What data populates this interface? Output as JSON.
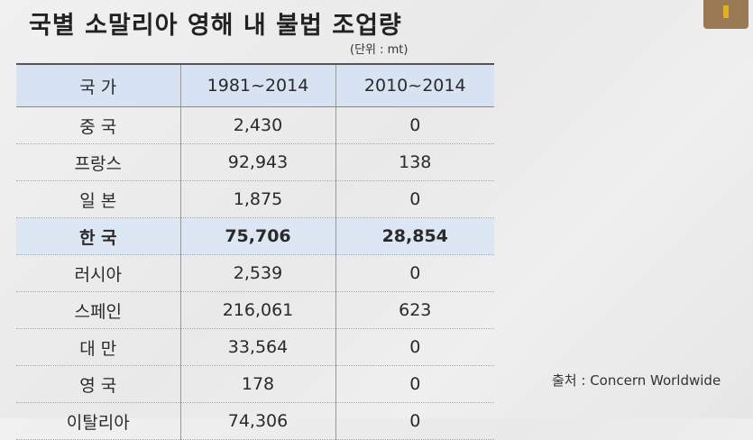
{
  "title": "국별 소말리아 영해 내 불법 조업량",
  "unit": "(단위 : mt)",
  "table": {
    "header": [
      "국 가",
      "1981~2014",
      "2010~2014"
    ],
    "rows": [
      [
        "중 국",
        "2,430",
        "0"
      ],
      [
        "프랑스",
        "92,943",
        "138"
      ],
      [
        "일 본",
        "1,875",
        "0"
      ],
      [
        "한 국",
        "75,706",
        "28,854"
      ],
      [
        "러시아",
        "2,539",
        "0"
      ],
      [
        "스페인",
        "216,061",
        "623"
      ],
      [
        "대 만",
        "33,564",
        "0"
      ],
      [
        "영 국",
        "178",
        "0"
      ],
      [
        "이탈리아",
        "74,306",
        "0"
      ]
    ],
    "highlight_row": 3
  },
  "source": "출처 : Concern Worldwide"
}
